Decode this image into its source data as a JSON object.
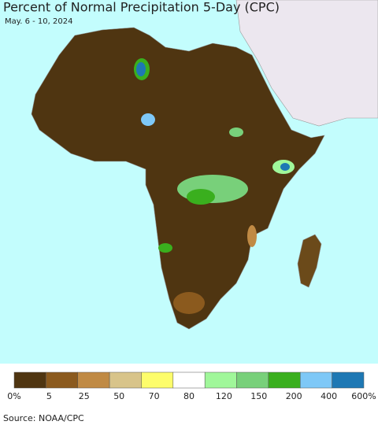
{
  "title": "Percent of Normal Precipitation 5-Day (CPC)",
  "subtitle": "May. 6 - 10, 2024",
  "legend": {
    "colors": [
      "#4f3511",
      "#8b5a1e",
      "#c08a44",
      "#d8c48a",
      "#fdfd6b",
      "#ffffff",
      "#a0f79a",
      "#78d07a",
      "#3aaf1e",
      "#7ec8f7",
      "#1e78b4"
    ],
    "labels": [
      "0%",
      "5",
      "25",
      "50",
      "70",
      "80",
      "120",
      "150",
      "200",
      "400",
      "600%"
    ]
  },
  "source": "Source: NOAA/CPC"
}
